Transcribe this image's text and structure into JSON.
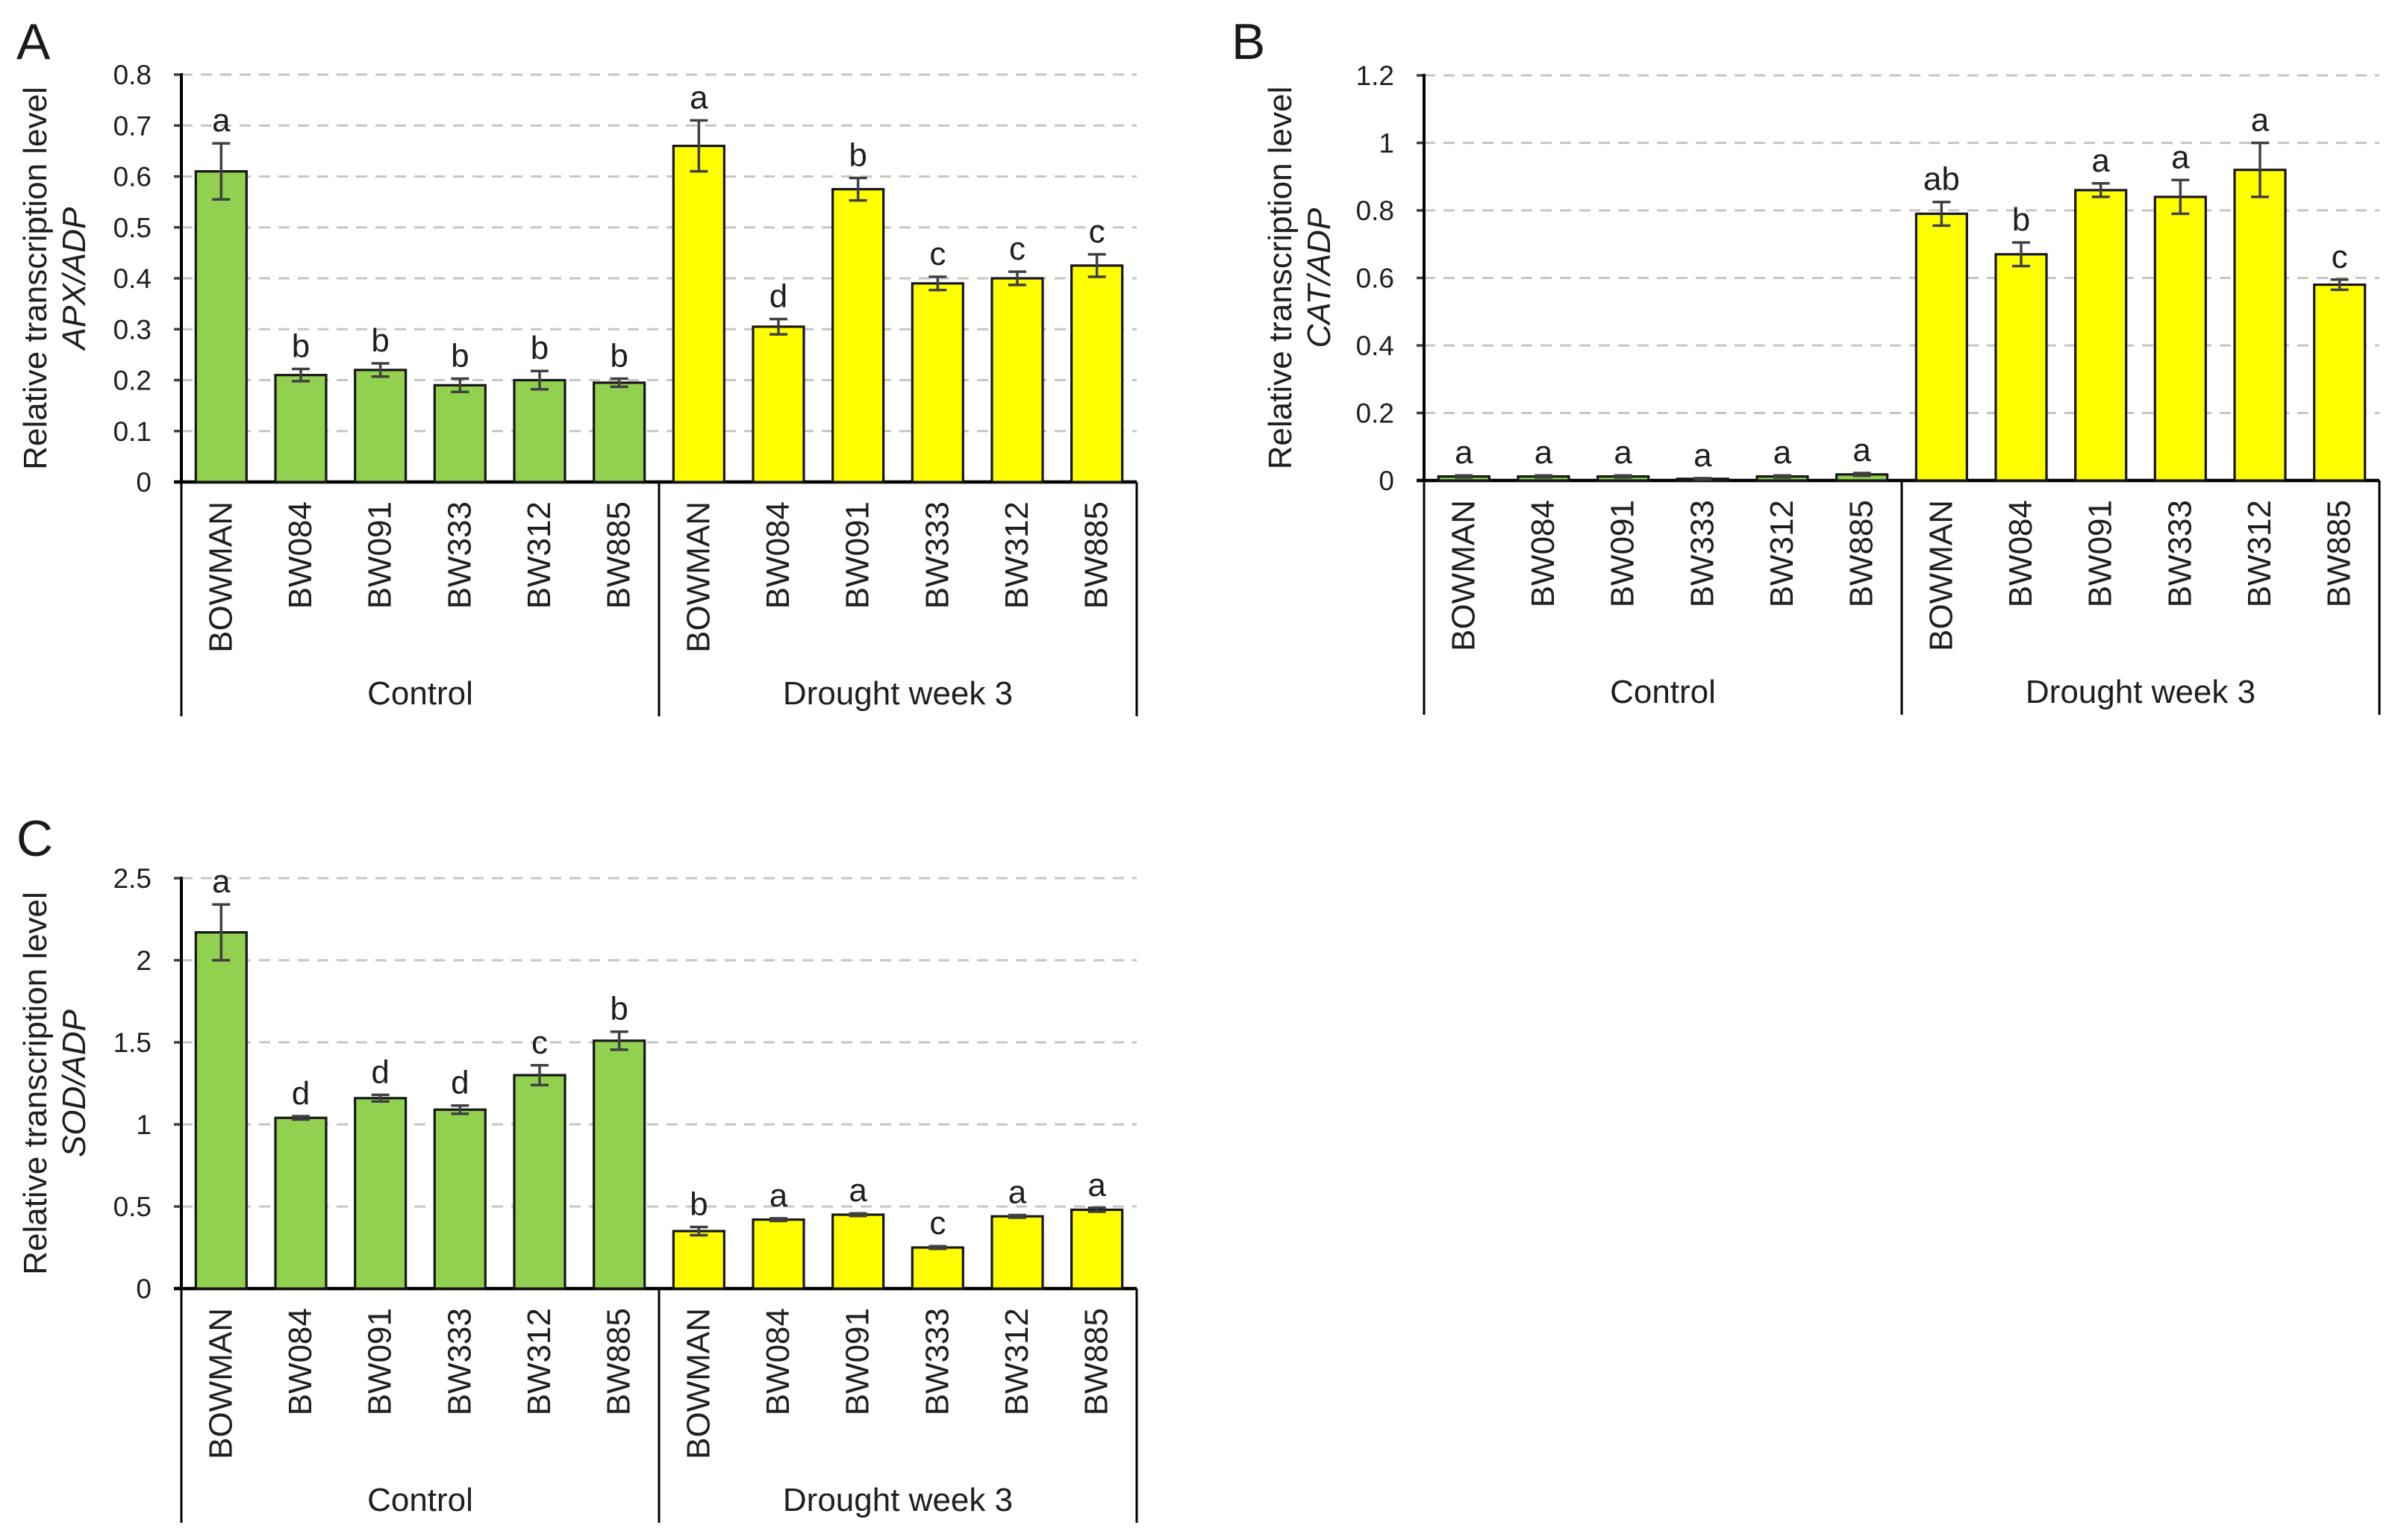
{
  "figure": {
    "background": "#ffffff",
    "categories": [
      "BOWMAN",
      "BW084",
      "BW091",
      "BW333",
      "BW312",
      "BW885"
    ],
    "group_labels": [
      "Control",
      "Drought week 3"
    ],
    "colors": {
      "control_bar": "#92d050",
      "drought_bar": "#ffff00",
      "bar_outline": "#161616",
      "error_bar": "#404040",
      "gridline": "#c6c6c6",
      "axis": "#000000",
      "text": "#1f1f1f"
    }
  },
  "chart_data": [
    {
      "panel_label": "A",
      "type": "bar",
      "ylabel": "Relative transcription level",
      "ylabel_gene": "APX/ADP",
      "ylim": [
        0,
        0.8
      ],
      "ytick_labels": [
        "0",
        "0.1",
        "0.2",
        "0.3",
        "0.4",
        "0.5",
        "0.6",
        "0.7",
        "0.8"
      ],
      "grid": true,
      "legend_position": "none",
      "categories": [
        "BOWMAN",
        "BW084",
        "BW091",
        "BW333",
        "BW312",
        "BW885"
      ],
      "series": [
        {
          "name": "Control",
          "color": "#92d050",
          "values": [
            0.61,
            0.21,
            0.22,
            0.19,
            0.2,
            0.195
          ],
          "errors": [
            0.055,
            0.012,
            0.013,
            0.013,
            0.018,
            0.008
          ],
          "sig_letters": [
            "a",
            "b",
            "b",
            "b",
            "b",
            "b"
          ]
        },
        {
          "name": "Drought week 3",
          "color": "#ffff00",
          "values": [
            0.66,
            0.305,
            0.575,
            0.39,
            0.4,
            0.425
          ],
          "errors": [
            0.05,
            0.015,
            0.022,
            0.013,
            0.013,
            0.022
          ],
          "sig_letters": [
            "a",
            "d",
            "b",
            "c",
            "c",
            "c"
          ]
        }
      ]
    },
    {
      "panel_label": "B",
      "type": "bar",
      "ylabel": "Relative transcription level",
      "ylabel_gene": "CAT/ADP",
      "ylim": [
        0,
        1.2
      ],
      "ytick_labels": [
        "0",
        "0.2",
        "0.4",
        "0.6",
        "0.8",
        "1",
        "1.2"
      ],
      "grid": true,
      "legend_position": "none",
      "categories": [
        "BOWMAN",
        "BW084",
        "BW091",
        "BW333",
        "BW312",
        "BW885"
      ],
      "series": [
        {
          "name": "Control",
          "color": "#92d050",
          "values": [
            0.012,
            0.012,
            0.012,
            0.005,
            0.012,
            0.018
          ],
          "errors": [
            0.003,
            0.003,
            0.003,
            0.002,
            0.003,
            0.004
          ],
          "sig_letters": [
            "a",
            "a",
            "a",
            "a",
            "a",
            "a"
          ]
        },
        {
          "name": "Drought week 3",
          "color": "#ffff00",
          "values": [
            0.79,
            0.67,
            0.86,
            0.84,
            0.92,
            0.58
          ],
          "errors": [
            0.035,
            0.035,
            0.02,
            0.05,
            0.08,
            0.015
          ],
          "sig_letters": [
            "ab",
            "b",
            "a",
            "a",
            "a",
            "c"
          ]
        }
      ]
    },
    {
      "panel_label": "C",
      "type": "bar",
      "ylabel": "Relative transcription level",
      "ylabel_gene": "SOD/ADP",
      "ylim": [
        0,
        2.5
      ],
      "ytick_labels": [
        "0",
        "0.5",
        "1",
        "1.5",
        "2",
        "2.5"
      ],
      "grid": true,
      "legend_position": "none",
      "categories": [
        "BOWMAN",
        "BW084",
        "BW091",
        "BW333",
        "BW312",
        "BW885"
      ],
      "series": [
        {
          "name": "Control",
          "color": "#92d050",
          "values": [
            2.17,
            1.04,
            1.16,
            1.09,
            1.3,
            1.51
          ],
          "errors": [
            0.17,
            0.01,
            0.02,
            0.025,
            0.06,
            0.055
          ],
          "sig_letters": [
            "a",
            "d",
            "d",
            "d",
            "c",
            "b"
          ]
        },
        {
          "name": "Drought week 3",
          "color": "#ffff00",
          "values": [
            0.35,
            0.42,
            0.45,
            0.25,
            0.44,
            0.48
          ],
          "errors": [
            0.025,
            0.008,
            0.008,
            0.008,
            0.008,
            0.012
          ],
          "sig_letters": [
            "b",
            "a",
            "a",
            "c",
            "a",
            "a"
          ]
        }
      ]
    }
  ]
}
